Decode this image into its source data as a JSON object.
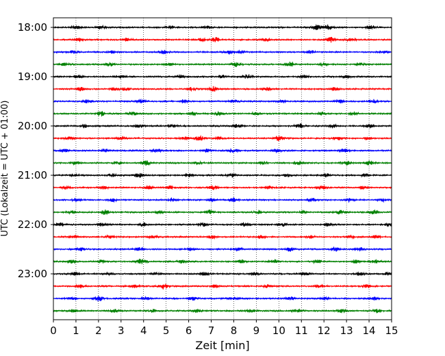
{
  "chart_data": {
    "type": "line",
    "title": "",
    "xlabel": "Zeit  [min]",
    "ylabel": "UTC (Lokalzeit = UTC + 01:00)",
    "xlim": [
      0,
      15
    ],
    "x_ticks": [
      "0",
      "1",
      "2",
      "3",
      "4",
      "5",
      "6",
      "7",
      "8",
      "9",
      "10",
      "11",
      "12",
      "13",
      "14",
      "15"
    ],
    "y_tick_labels": [
      "18:00",
      "19:00",
      "20:00",
      "21:00",
      "22:00",
      "23:00"
    ],
    "grid": "vertical dotted",
    "trace_interval_minutes": 15,
    "trace_colors": [
      "#000000",
      "#ff0000",
      "#0000ff",
      "#008000"
    ],
    "rows": [
      {
        "start": "18:00",
        "events": [
          [
            1.0,
            1.0
          ],
          [
            2.1,
            0.8
          ],
          [
            5.2,
            0.9
          ],
          [
            6.8,
            0.7
          ],
          [
            11.7,
            1.6
          ],
          [
            12.2,
            1.2
          ],
          [
            14.1,
            1.0
          ]
        ]
      },
      {
        "start": "18:15",
        "events": [
          [
            1.1,
            0.9
          ],
          [
            3.3,
            1.0
          ],
          [
            6.6,
            0.8
          ],
          [
            7.2,
            1.2
          ],
          [
            9.4,
            0.7
          ],
          [
            12.3,
            1.5
          ],
          [
            13.2,
            0.8
          ]
        ]
      },
      {
        "start": "18:30",
        "events": [
          [
            0.9,
            0.8
          ],
          [
            2.6,
            0.7
          ],
          [
            4.9,
            0.9
          ],
          [
            7.8,
            1.0
          ],
          [
            8.3,
            0.8
          ],
          [
            11.4,
            0.9
          ],
          [
            14.6,
            0.7
          ]
        ]
      },
      {
        "start": "18:45",
        "events": [
          [
            0.5,
            0.7
          ],
          [
            2.5,
            1.0
          ],
          [
            5.1,
            0.7
          ],
          [
            8.1,
            1.1
          ],
          [
            10.5,
            1.4
          ],
          [
            12.0,
            0.7
          ],
          [
            13.6,
            0.8
          ]
        ]
      },
      {
        "start": "19:00",
        "events": [
          [
            1.1,
            0.8
          ],
          [
            3.0,
            0.7
          ],
          [
            5.6,
            0.9
          ],
          [
            7.5,
            0.8
          ],
          [
            8.6,
            1.2
          ],
          [
            11.1,
            0.7
          ],
          [
            13.0,
            0.8
          ]
        ]
      },
      {
        "start": "19:15",
        "events": [
          [
            1.2,
            1.0
          ],
          [
            2.7,
            0.9
          ],
          [
            3.2,
            1.0
          ],
          [
            6.1,
            0.8
          ],
          [
            7.1,
            1.3
          ],
          [
            9.5,
            0.8
          ],
          [
            12.5,
            0.9
          ]
        ]
      },
      {
        "start": "19:30",
        "events": [
          [
            1.5,
            0.9
          ],
          [
            3.9,
            0.8
          ],
          [
            5.8,
            0.9
          ],
          [
            8.0,
            0.8
          ],
          [
            10.1,
            0.9
          ],
          [
            12.7,
            0.8
          ],
          [
            14.2,
            0.9
          ]
        ]
      },
      {
        "start": "19:45",
        "events": [
          [
            2.1,
            1.5
          ],
          [
            3.5,
            1.0
          ],
          [
            6.2,
            0.8
          ],
          [
            7.3,
            0.9
          ],
          [
            9.0,
            0.8
          ],
          [
            11.9,
            0.9
          ],
          [
            13.3,
            0.8
          ]
        ]
      },
      {
        "start": "20:00",
        "events": [
          [
            1.4,
            0.7
          ],
          [
            3.8,
            0.8
          ],
          [
            5.3,
            0.7
          ],
          [
            8.2,
            1.1
          ],
          [
            10.9,
            1.2
          ],
          [
            12.4,
            0.7
          ],
          [
            14.0,
            0.8
          ]
        ]
      },
      {
        "start": "20:15",
        "events": [
          [
            0.7,
            0.8
          ],
          [
            3.0,
            0.8
          ],
          [
            5.8,
            1.0
          ],
          [
            6.5,
            1.4
          ],
          [
            7.4,
            0.9
          ],
          [
            10.0,
            1.8
          ],
          [
            12.6,
            0.9
          ],
          [
            13.9,
            0.7
          ]
        ]
      },
      {
        "start": "20:30",
        "events": [
          [
            0.5,
            0.8
          ],
          [
            2.3,
            0.8
          ],
          [
            4.6,
            0.9
          ],
          [
            6.8,
            0.8
          ],
          [
            8.0,
            1.4
          ],
          [
            9.9,
            0.8
          ],
          [
            12.9,
            0.9
          ]
        ]
      },
      {
        "start": "20:45",
        "events": [
          [
            1.0,
            0.7
          ],
          [
            2.9,
            0.8
          ],
          [
            4.1,
            1.2
          ],
          [
            6.4,
            0.7
          ],
          [
            9.3,
            0.8
          ],
          [
            10.9,
            1.0
          ],
          [
            13.0,
            1.2
          ],
          [
            14.0,
            1.1
          ]
        ]
      },
      {
        "start": "21:00",
        "events": [
          [
            0.9,
            0.7
          ],
          [
            2.6,
            0.8
          ],
          [
            3.8,
            1.2
          ],
          [
            6.0,
            0.8
          ],
          [
            7.9,
            1.0
          ],
          [
            10.4,
            0.9
          ],
          [
            12.1,
            0.9
          ],
          [
            13.8,
            0.8
          ]
        ]
      },
      {
        "start": "21:15",
        "events": [
          [
            0.6,
            0.9
          ],
          [
            2.2,
            0.9
          ],
          [
            4.2,
            0.8
          ],
          [
            5.2,
            0.9
          ],
          [
            7.1,
            1.0
          ],
          [
            9.6,
            0.9
          ],
          [
            11.9,
            1.0
          ],
          [
            13.7,
            0.8
          ]
        ]
      },
      {
        "start": "21:30",
        "events": [
          [
            1.0,
            0.8
          ],
          [
            2.6,
            0.9
          ],
          [
            5.3,
            0.8
          ],
          [
            7.0,
            0.7
          ],
          [
            8.0,
            1.0
          ],
          [
            11.5,
            0.9
          ],
          [
            13.1,
            0.8
          ],
          [
            14.6,
            0.7
          ]
        ]
      },
      {
        "start": "21:45",
        "events": [
          [
            0.8,
            0.8
          ],
          [
            2.3,
            1.3
          ],
          [
            4.7,
            0.8
          ],
          [
            6.9,
            1.2
          ],
          [
            9.1,
            0.7
          ],
          [
            11.1,
            1.0
          ],
          [
            12.7,
            1.3
          ],
          [
            14.2,
            1.0
          ]
        ]
      },
      {
        "start": "22:00",
        "events": [
          [
            0.3,
            0.8
          ],
          [
            2.2,
            1.1
          ],
          [
            4.0,
            0.9
          ],
          [
            6.6,
            1.0
          ],
          [
            8.5,
            0.8
          ],
          [
            10.2,
            0.9
          ],
          [
            12.2,
            0.8
          ],
          [
            14.9,
            0.9
          ]
        ]
      },
      {
        "start": "22:15",
        "events": [
          [
            0.9,
            0.7
          ],
          [
            2.5,
            0.8
          ],
          [
            4.4,
            0.7
          ],
          [
            7.0,
            0.9
          ],
          [
            9.2,
            0.8
          ],
          [
            11.4,
            0.8
          ],
          [
            13.2,
            0.7
          ],
          [
            14.3,
            0.8
          ]
        ]
      },
      {
        "start": "22:30",
        "events": [
          [
            1.2,
            0.9
          ],
          [
            3.8,
            0.8
          ],
          [
            6.1,
            0.7
          ],
          [
            8.2,
            0.9
          ],
          [
            10.5,
            1.2
          ],
          [
            12.5,
            1.1
          ],
          [
            13.6,
            0.8
          ]
        ]
      },
      {
        "start": "22:45",
        "events": [
          [
            0.8,
            0.9
          ],
          [
            2.1,
            0.9
          ],
          [
            3.9,
            1.5
          ],
          [
            5.7,
            0.8
          ],
          [
            8.3,
            1.1
          ],
          [
            9.8,
            0.9
          ],
          [
            11.7,
            1.0
          ],
          [
            13.4,
            1.0
          ],
          [
            14.3,
            0.9
          ]
        ]
      },
      {
        "start": "23:00",
        "events": [
          [
            1.0,
            0.8
          ],
          [
            2.5,
            0.7
          ],
          [
            4.6,
            0.8
          ],
          [
            6.7,
            0.9
          ],
          [
            8.9,
            0.8
          ],
          [
            11.2,
            0.9
          ],
          [
            13.6,
            0.8
          ],
          [
            14.8,
            0.7
          ]
        ]
      },
      {
        "start": "23:15",
        "events": [
          [
            1.2,
            1.0
          ],
          [
            3.6,
            0.8
          ],
          [
            4.9,
            1.5
          ],
          [
            7.2,
            0.8
          ],
          [
            9.5,
            0.8
          ],
          [
            11.8,
            0.9
          ],
          [
            13.9,
            0.9
          ]
        ]
      },
      {
        "start": "23:30",
        "events": [
          [
            0.8,
            0.8
          ],
          [
            2.0,
            1.5
          ],
          [
            4.1,
            0.8
          ],
          [
            6.2,
            0.9
          ],
          [
            8.0,
            0.8
          ],
          [
            10.5,
            1.0
          ],
          [
            12.0,
            0.9
          ],
          [
            14.2,
            0.9
          ]
        ]
      },
      {
        "start": "23:45",
        "events": [
          [
            0.9,
            0.8
          ],
          [
            2.7,
            0.9
          ],
          [
            4.4,
            0.8
          ],
          [
            6.4,
            0.8
          ],
          [
            8.8,
            0.9
          ],
          [
            10.8,
            0.8
          ],
          [
            12.8,
            0.9
          ],
          [
            14.4,
            0.9
          ]
        ]
      }
    ]
  }
}
